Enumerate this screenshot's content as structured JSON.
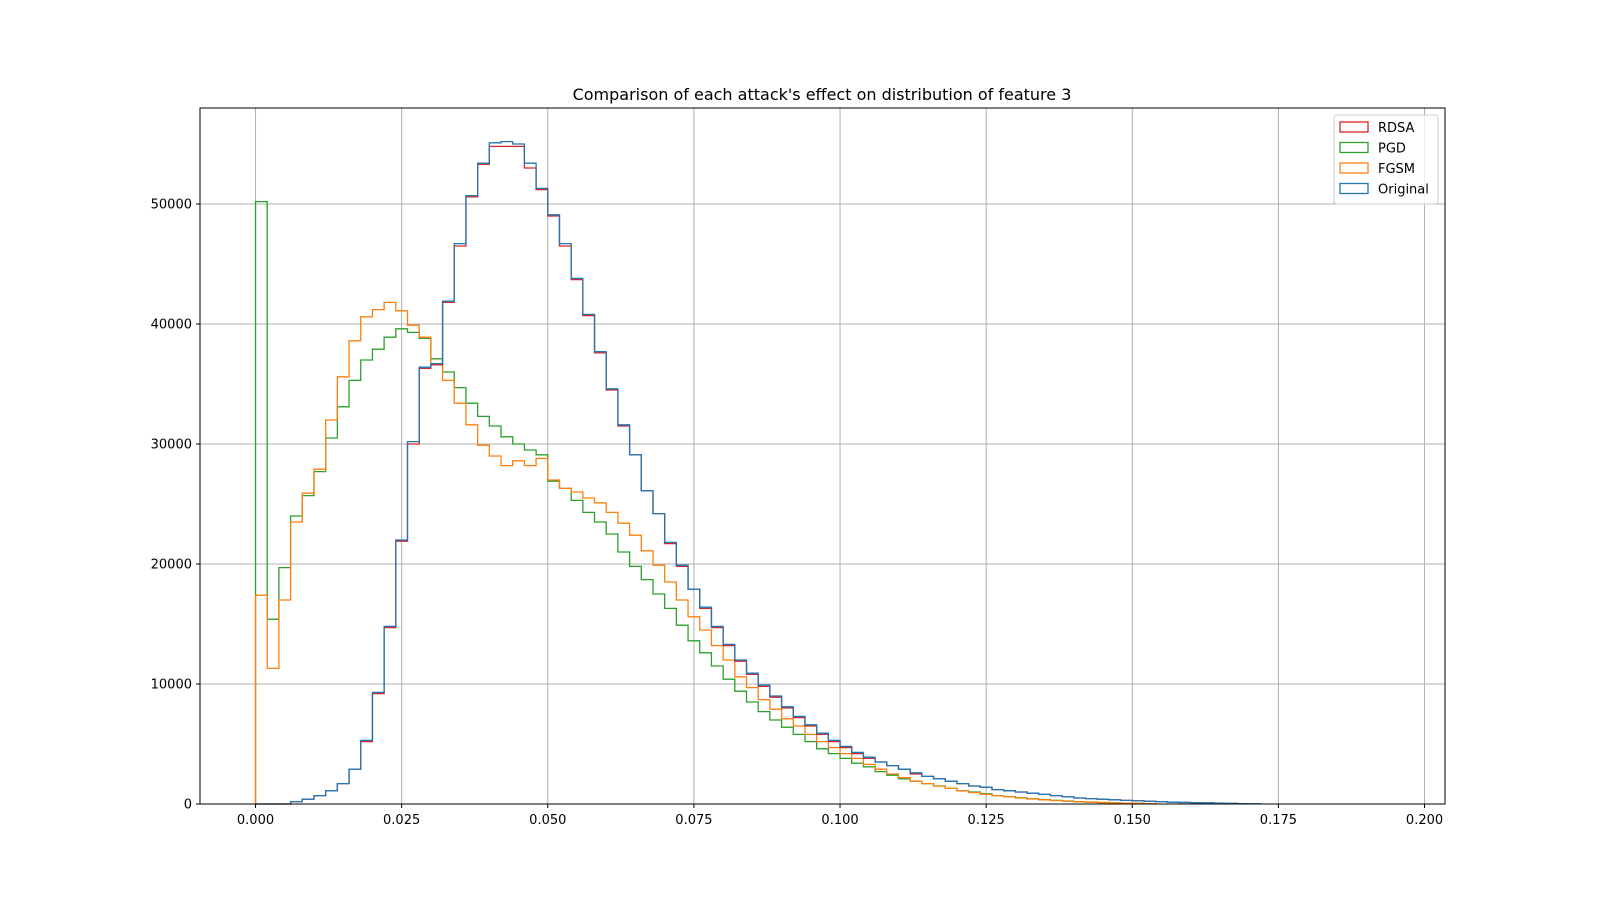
{
  "chart_data": {
    "type": "histogram",
    "title": "Comparison of each attack's effect on distribution of feature 3",
    "xlabel": "",
    "ylabel": "",
    "xlim": [
      -0.0095,
      0.2035
    ],
    "ylim": [
      0,
      58000
    ],
    "grid": true,
    "legend_position": "upper-right",
    "x_ticks": [
      0.0,
      0.025,
      0.05,
      0.075,
      0.1,
      0.125,
      0.15,
      0.175,
      0.2
    ],
    "x_tick_labels": [
      "0.000",
      "0.025",
      "0.050",
      "0.075",
      "0.100",
      "0.125",
      "0.150",
      "0.175",
      "0.200"
    ],
    "y_ticks": [
      0,
      10000,
      20000,
      30000,
      40000,
      50000
    ],
    "y_tick_labels": [
      "0",
      "10000",
      "20000",
      "30000",
      "40000",
      "50000"
    ],
    "series": [
      {
        "name": "RDSA",
        "color": "#d62728",
        "bin_start": 0.0,
        "bin_width": 0.002,
        "values": [
          0,
          0,
          0,
          200,
          400,
          700,
          1100,
          1700,
          2900,
          5200,
          9200,
          14700,
          21900,
          30000,
          36300,
          36600,
          41800,
          46500,
          50600,
          53300,
          54800,
          54800,
          54800,
          53000,
          51200,
          49000,
          46500,
          43700,
          40700,
          37600,
          34500,
          31500,
          29100,
          26100,
          24200,
          21700,
          19800,
          17900,
          16300,
          14700,
          13200,
          11900,
          10800,
          9800,
          8900,
          8000,
          7200,
          6500,
          5800,
          5200,
          4700,
          4200,
          3800,
          3500,
          3200,
          2900,
          2500,
          2300,
          2100,
          1900,
          1700,
          1500,
          1400,
          1200,
          1100,
          1000,
          900,
          800,
          700,
          600,
          500,
          450,
          400,
          350,
          300,
          270,
          230,
          200,
          150,
          130,
          110,
          90,
          70,
          50
        ]
      },
      {
        "name": "PGD",
        "color": "#2ca02c",
        "bin_start": 0.0,
        "bin_width": 0.002,
        "values": [
          50200,
          15400,
          19700,
          24000,
          25700,
          27700,
          30500,
          33100,
          35300,
          37000,
          37900,
          38900,
          39600,
          39300,
          38800,
          37100,
          36000,
          34700,
          33400,
          32300,
          31500,
          30600,
          30000,
          29500,
          29100,
          26900,
          26300,
          25300,
          24300,
          23500,
          22500,
          21000,
          19800,
          18700,
          17500,
          16300,
          14900,
          13600,
          12600,
          11500,
          10400,
          9400,
          8500,
          7700,
          7000,
          6400,
          5800,
          5200,
          4600,
          4200,
          3800,
          3400,
          3100,
          2700,
          2400,
          2100,
          1900,
          1700,
          1500,
          1300,
          1100,
          1000,
          850,
          700,
          600,
          520,
          440,
          370,
          300,
          250,
          200,
          160,
          120,
          90,
          70,
          50,
          30
        ]
      },
      {
        "name": "FGSM",
        "color": "#ff7f0e",
        "bin_start": 0.0,
        "bin_width": 0.002,
        "values": [
          17400,
          11300,
          17000,
          23500,
          25900,
          27900,
          32000,
          35600,
          38600,
          40600,
          41200,
          41800,
          41100,
          39900,
          38900,
          36700,
          35300,
          33400,
          31600,
          29900,
          29000,
          28200,
          28600,
          28200,
          28800,
          27000,
          26300,
          26000,
          25500,
          25100,
          24300,
          23400,
          22400,
          21100,
          19900,
          18500,
          17000,
          15600,
          14500,
          13200,
          12000,
          10600,
          9700,
          8700,
          7900,
          7100,
          6500,
          5800,
          5200,
          4700,
          4200,
          3800,
          3300,
          2900,
          2500,
          2200,
          1900,
          1700,
          1500,
          1300,
          1100,
          950,
          800,
          700,
          600,
          500,
          420,
          350,
          290,
          230,
          190,
          150,
          120,
          90,
          70,
          50,
          30
        ]
      },
      {
        "name": "Original",
        "color": "#1f77b4",
        "bin_start": 0.0,
        "bin_width": 0.002,
        "values": [
          0,
          0,
          0,
          200,
          400,
          700,
          1100,
          1700,
          2900,
          5300,
          9300,
          14800,
          22000,
          30200,
          36400,
          36700,
          41900,
          46700,
          50700,
          53400,
          55100,
          55200,
          55000,
          53400,
          51300,
          49100,
          46700,
          43800,
          40800,
          37700,
          34600,
          31600,
          29100,
          26100,
          24200,
          21800,
          19900,
          17900,
          16400,
          14800,
          13300,
          12000,
          10900,
          9900,
          9000,
          8100,
          7300,
          6600,
          5900,
          5300,
          4800,
          4300,
          3900,
          3500,
          3200,
          2900,
          2600,
          2300,
          2100,
          1900,
          1700,
          1500,
          1400,
          1200,
          1100,
          1000,
          900,
          800,
          700,
          600,
          500,
          450,
          400,
          350,
          300,
          270,
          230,
          200,
          150,
          130,
          110,
          90,
          70,
          50,
          30,
          20
        ]
      }
    ]
  }
}
